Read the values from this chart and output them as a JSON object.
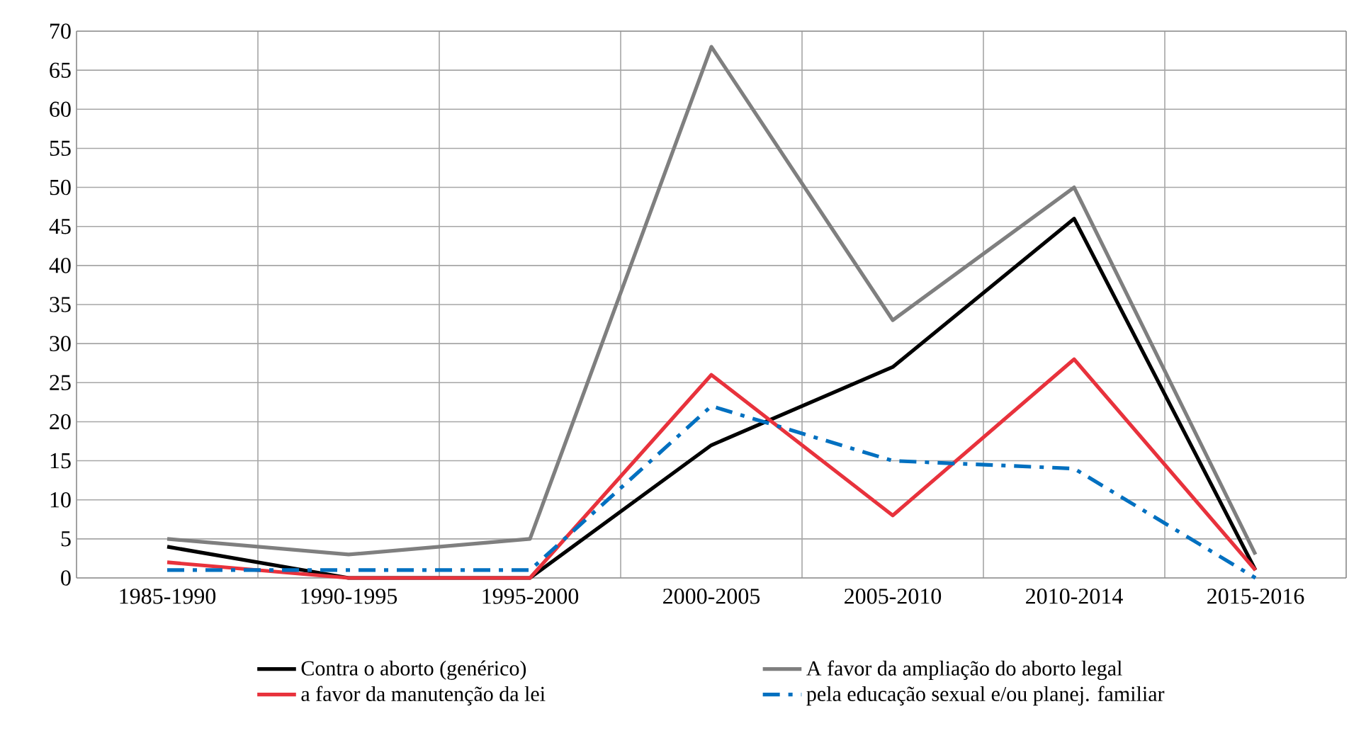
{
  "chart_data": {
    "type": "line",
    "categories": [
      "1985-1990",
      "1990-1995",
      "1995-2000",
      "2000-2005",
      "2005-2010",
      "2010-2014",
      "2015-2016"
    ],
    "series": [
      {
        "name": "Contra o aborto (genérico)",
        "color": "#000000",
        "values": [
          4,
          0,
          0,
          17,
          27,
          46,
          1
        ]
      },
      {
        "name": "A favor da ampliação do aborto legal",
        "color": "#7f7f7f",
        "values": [
          5,
          3,
          5,
          68,
          33,
          50,
          3
        ]
      },
      {
        "name": "a favor da manutenção da lei",
        "color": "#e8323c",
        "values": [
          2,
          0,
          0,
          26,
          8,
          28,
          1
        ]
      },
      {
        "name": "pela educação sexual e/ou planej. familiar",
        "color": "#0070c0",
        "line_style": "dashdot",
        "values": [
          1,
          1,
          1,
          22,
          15,
          14,
          0
        ]
      }
    ],
    "ylim": [
      0,
      70
    ],
    "yticks": [
      0,
      5,
      10,
      15,
      20,
      25,
      30,
      35,
      40,
      45,
      50,
      55,
      60,
      65,
      70
    ],
    "grid": true,
    "legend": "bottom",
    "marker": "none",
    "line_style": "solid"
  }
}
